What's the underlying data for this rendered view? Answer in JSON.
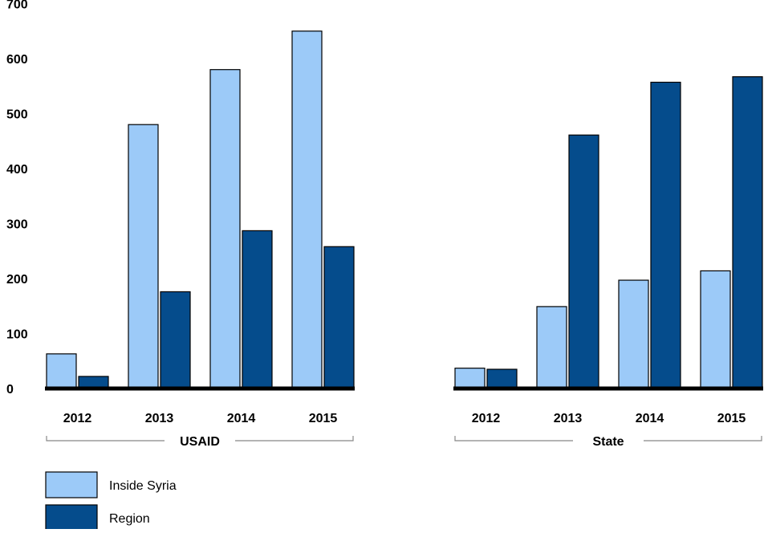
{
  "colors": {
    "inside_syria": "#9ccaf8",
    "region": "#054c8c",
    "axis": "#000000",
    "bracket": "#888888"
  },
  "chart_data": {
    "type": "bar",
    "ylim": [
      0,
      700
    ],
    "yticks": [
      0,
      100,
      200,
      300,
      400,
      500,
      600,
      700
    ],
    "grid": false,
    "legend_position": "bottom-left",
    "legend": [
      "Inside Syria",
      "Region"
    ],
    "panels": [
      {
        "group_label": "USAID",
        "categories": [
          "2012",
          "2013",
          "2014",
          "2015"
        ],
        "series": [
          {
            "name": "Inside Syria",
            "values": [
              63,
              480,
              580,
              650
            ]
          },
          {
            "name": "Region",
            "values": [
              22,
              176,
              287,
              258
            ]
          }
        ]
      },
      {
        "group_label": "State",
        "categories": [
          "2012",
          "2013",
          "2014",
          "2015"
        ],
        "series": [
          {
            "name": "Inside Syria",
            "values": [
              37,
              149,
              197,
              214
            ]
          },
          {
            "name": "Region",
            "values": [
              35,
              461,
              557,
              567
            ]
          }
        ]
      }
    ]
  }
}
